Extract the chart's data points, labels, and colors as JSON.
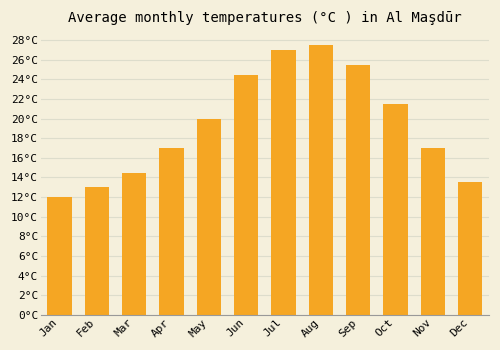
{
  "title": "Average monthly temperatures (°C ) in Al Maşdūr",
  "months": [
    "Jan",
    "Feb",
    "Mar",
    "Apr",
    "May",
    "Jun",
    "Jul",
    "Aug",
    "Sep",
    "Oct",
    "Nov",
    "Dec"
  ],
  "values": [
    12.0,
    13.0,
    14.5,
    17.0,
    20.0,
    24.5,
    27.0,
    27.5,
    25.5,
    21.5,
    17.0,
    13.5
  ],
  "ylim": [
    0,
    29
  ],
  "yticks": [
    0,
    2,
    4,
    6,
    8,
    10,
    12,
    14,
    16,
    18,
    20,
    22,
    24,
    26,
    28
  ],
  "ytick_labels": [
    "0°C",
    "2°C",
    "4°C",
    "6°C",
    "8°C",
    "10°C",
    "12°C",
    "14°C",
    "16°C",
    "18°C",
    "20°C",
    "22°C",
    "24°C",
    "26°C",
    "28°C"
  ],
  "bar_color": "#F5A623",
  "background_color": "#F5F0DC",
  "plot_bg_color": "#F5F0DC",
  "grid_color": "#DDDDCC",
  "title_fontsize": 10,
  "tick_fontsize": 8,
  "bar_width": 0.65
}
